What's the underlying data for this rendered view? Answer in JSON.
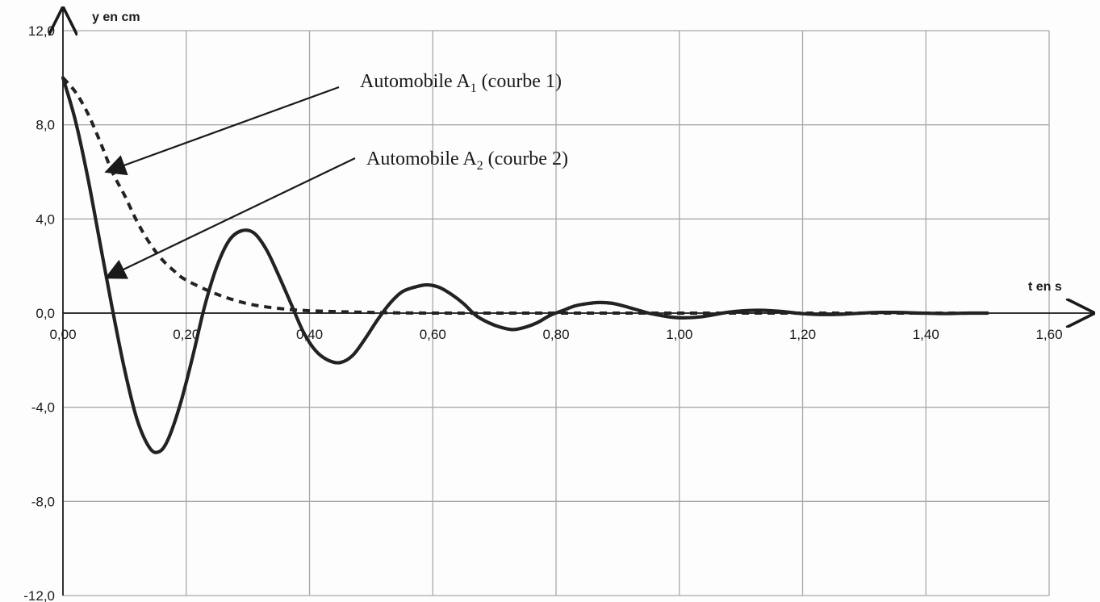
{
  "chart_data": {
    "type": "line",
    "title": "",
    "xlabel": "t en s",
    "ylabel": "y en cm",
    "xlim": [
      0,
      1.6
    ],
    "ylim": [
      -12,
      12
    ],
    "x_ticks": [
      "0,00",
      "0,20",
      "0,40",
      "0,60",
      "0,80",
      "1,00",
      "1,20",
      "1,40",
      "1,60"
    ],
    "y_ticks": [
      "12,0",
      "8,0",
      "4,0",
      "0,0",
      "-4,0",
      "-8,0",
      "-12,0"
    ],
    "grid": true,
    "series": [
      {
        "name": "Automobile A1 (courbe 1)",
        "style": "dashed",
        "color": "#222222",
        "x": [
          0.0,
          0.02,
          0.04,
          0.06,
          0.08,
          0.1,
          0.12,
          0.14,
          0.16,
          0.18,
          0.2,
          0.25,
          0.3,
          0.35,
          0.4,
          0.5,
          0.6,
          0.8,
          1.0,
          1.2,
          1.4,
          1.5
        ],
        "y": [
          10.0,
          9.4,
          8.5,
          7.3,
          6.0,
          5.0,
          3.9,
          3.0,
          2.3,
          1.8,
          1.4,
          0.8,
          0.4,
          0.2,
          0.1,
          0.03,
          0.0,
          0.0,
          0.0,
          0.0,
          0.0,
          0.0
        ]
      },
      {
        "name": "Automobile A2 (courbe 2)",
        "style": "solid",
        "color": "#222222",
        "x": [
          0.0,
          0.02,
          0.04,
          0.06,
          0.08,
          0.1,
          0.12,
          0.14,
          0.155,
          0.17,
          0.19,
          0.21,
          0.23,
          0.25,
          0.27,
          0.29,
          0.31,
          0.33,
          0.35,
          0.37,
          0.39,
          0.41,
          0.43,
          0.45,
          0.47,
          0.49,
          0.51,
          0.53,
          0.55,
          0.57,
          0.59,
          0.61,
          0.63,
          0.65,
          0.67,
          0.69,
          0.71,
          0.73,
          0.75,
          0.77,
          0.79,
          0.81,
          0.83,
          0.85,
          0.87,
          0.89,
          0.91,
          0.93,
          0.95,
          0.97,
          0.99,
          1.01,
          1.03,
          1.05,
          1.07,
          1.09,
          1.11,
          1.13,
          1.15,
          1.17,
          1.19,
          1.21,
          1.23,
          1.25,
          1.27,
          1.29,
          1.31,
          1.33,
          1.35,
          1.37,
          1.39,
          1.41,
          1.43,
          1.45,
          1.47,
          1.5
        ],
        "y": [
          10.0,
          8.2,
          5.8,
          3.0,
          0.2,
          -2.4,
          -4.5,
          -5.7,
          -5.9,
          -5.4,
          -3.9,
          -1.9,
          0.3,
          2.0,
          3.1,
          3.5,
          3.4,
          2.7,
          1.6,
          0.4,
          -0.8,
          -1.6,
          -2.0,
          -2.1,
          -1.8,
          -1.1,
          -0.3,
          0.4,
          0.9,
          1.1,
          1.2,
          1.1,
          0.8,
          0.4,
          -0.1,
          -0.4,
          -0.6,
          -0.7,
          -0.6,
          -0.4,
          -0.1,
          0.1,
          0.3,
          0.4,
          0.45,
          0.42,
          0.3,
          0.15,
          0.0,
          -0.1,
          -0.18,
          -0.2,
          -0.17,
          -0.1,
          0.0,
          0.07,
          0.11,
          0.12,
          0.1,
          0.06,
          0.0,
          -0.04,
          -0.06,
          -0.06,
          -0.04,
          -0.01,
          0.02,
          0.03,
          0.03,
          0.02,
          0.0,
          -0.01,
          -0.02,
          -0.01,
          0.0,
          0.0
        ]
      }
    ],
    "annotations": [
      {
        "base": "Automobile A",
        "sub": "1",
        "suffix": " (courbe 1)",
        "target_series": 0,
        "target_x": 0.07,
        "target_y": 6.0
      },
      {
        "base": "Automobile A",
        "sub": "2",
        "suffix": " (courbe 2)",
        "target_series": 1,
        "target_x": 0.07,
        "target_y": 1.5
      }
    ]
  }
}
